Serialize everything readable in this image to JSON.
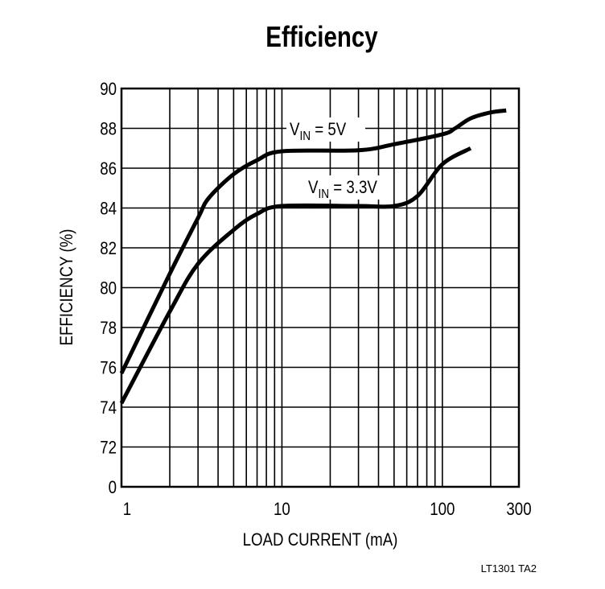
{
  "chart_data": {
    "type": "line",
    "title": "Efficiency",
    "xlabel": "LOAD CURRENT (mA)",
    "ylabel": "EFFICIENCY (%)",
    "x_scale": "log",
    "xlim": [
      1,
      300
    ],
    "x_tick_labels": [
      {
        "value": 1,
        "label": "1"
      },
      {
        "value": 10,
        "label": "10"
      },
      {
        "value": 100,
        "label": "100"
      },
      {
        "value": 300,
        "label": "300"
      }
    ],
    "y_axis_break": true,
    "ylim": [
      72,
      90
    ],
    "y_tick_labels": [
      "0",
      "72",
      "74",
      "76",
      "78",
      "80",
      "82",
      "84",
      "86",
      "88",
      "90"
    ],
    "grid": true,
    "line_color": "#000000",
    "series": [
      {
        "name": "VIN = 5V",
        "label_main": "V",
        "label_sub": "IN",
        "label_rest": " = 5V",
        "x": [
          1,
          2,
          3,
          3.5,
          5,
          7,
          10,
          30,
          50,
          100,
          120,
          150,
          200,
          250
        ],
        "y": [
          75.7,
          80.7,
          83.5,
          84.5,
          85.7,
          86.4,
          86.85,
          86.9,
          87.2,
          87.7,
          88.0,
          88.5,
          88.8,
          88.9
        ]
      },
      {
        "name": "VIN = 3.3V",
        "label_main": "V",
        "label_sub": "IN",
        "label_rest": " = 3.3V",
        "x": [
          1,
          2,
          3,
          5,
          7,
          10,
          30,
          50,
          70,
          100,
          150
        ],
        "y": [
          74.2,
          78.8,
          81.2,
          82.9,
          83.7,
          84.1,
          84.1,
          84.1,
          84.6,
          86.2,
          87.0
        ]
      }
    ],
    "footnote": "LT1301 TA2"
  }
}
